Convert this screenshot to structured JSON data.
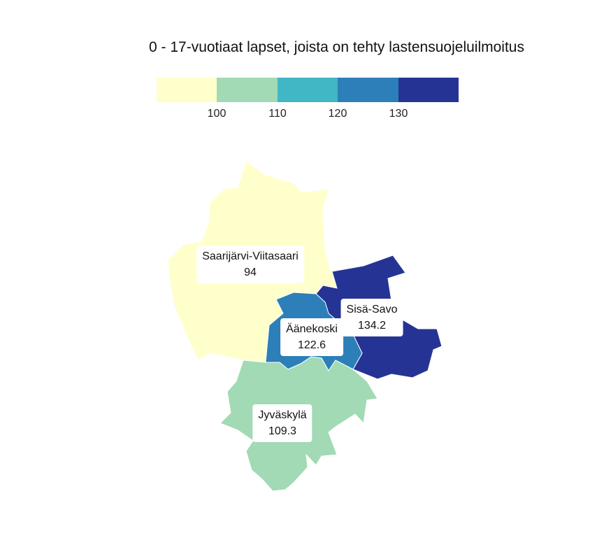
{
  "title": "0 - 17-vuotiaat lapset, joista on tehty lastensuojeluilmoitus",
  "legend": {
    "colors": [
      "#ffffcc",
      "#a1dab4",
      "#41b6c4",
      "#2c7fb8",
      "#253494"
    ],
    "ticks": [
      "100",
      "110",
      "120",
      "130"
    ]
  },
  "regions": [
    {
      "name": "Saarijärvi-Viitasaari",
      "value": "94",
      "color": "#ffffcc"
    },
    {
      "name": "Sisä-Savo",
      "value": "134.2",
      "color": "#253494"
    },
    {
      "name": "Äänekoski",
      "value": "122.6",
      "color": "#2c7fb8"
    },
    {
      "name": "Jyväskylä",
      "value": "109.3",
      "color": "#a1dab4"
    }
  ]
}
